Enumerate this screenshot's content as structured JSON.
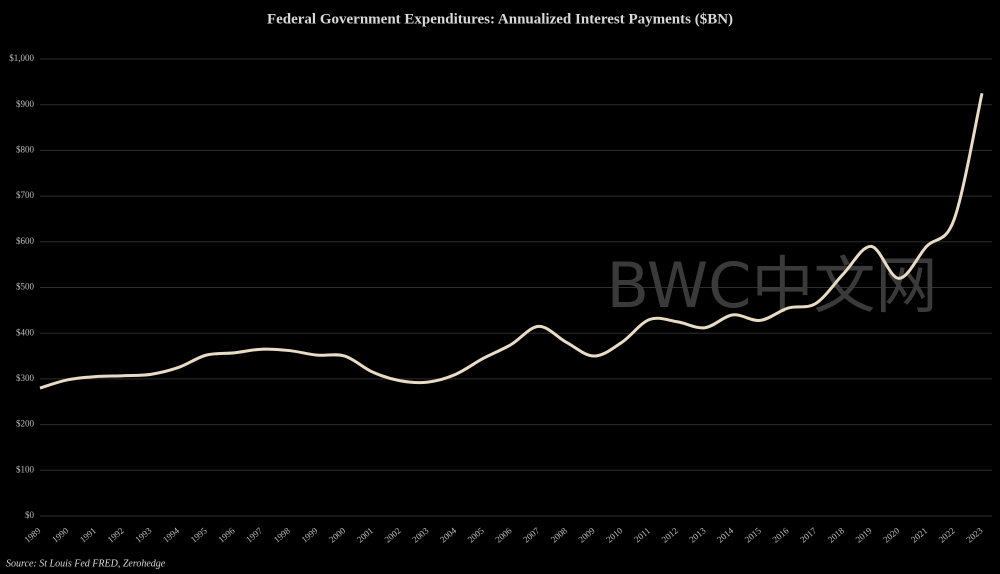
{
  "chart_data": {
    "type": "line",
    "title": "Federal Government Expenditures: Annualized Interest Payments ($BN)",
    "source": "Source: St Louis Fed FRED, Zerohedge",
    "watermark": "BWC中文网",
    "categories": [
      "1989",
      "1990",
      "1991",
      "1992",
      "1993",
      "1994",
      "1995",
      "1996",
      "1997",
      "1998",
      "1999",
      "2000",
      "2001",
      "2002",
      "2003",
      "2004",
      "2005",
      "2006",
      "2007",
      "2008",
      "2009",
      "2010",
      "2011",
      "2012",
      "2013",
      "2014",
      "2015",
      "2016",
      "2017",
      "2018",
      "2019",
      "2020",
      "2021",
      "2022",
      "2023"
    ],
    "series": [
      {
        "name": "Interest Payments",
        "color": "#e9dcc6",
        "values": [
          280,
          298,
          305,
          307,
          310,
          325,
          352,
          357,
          365,
          362,
          352,
          350,
          315,
          296,
          293,
          310,
          345,
          375,
          415,
          380,
          350,
          380,
          430,
          425,
          412,
          440,
          428,
          455,
          465,
          530,
          590,
          520,
          590,
          650,
          925
        ]
      }
    ],
    "ylim": [
      0,
      1000
    ],
    "yticks": [
      {
        "value": 0,
        "label": "$0"
      },
      {
        "value": 100,
        "label": "$100"
      },
      {
        "value": 200,
        "label": "$200"
      },
      {
        "value": 300,
        "label": "$300"
      },
      {
        "value": 400,
        "label": "$400"
      },
      {
        "value": 500,
        "label": "$500"
      },
      {
        "value": 600,
        "label": "$600"
      },
      {
        "value": 700,
        "label": "$700"
      },
      {
        "value": 800,
        "label": "$800"
      },
      {
        "value": 900,
        "label": "$900"
      },
      {
        "value": 1000,
        "label": "$1,000"
      }
    ],
    "grid": true
  }
}
